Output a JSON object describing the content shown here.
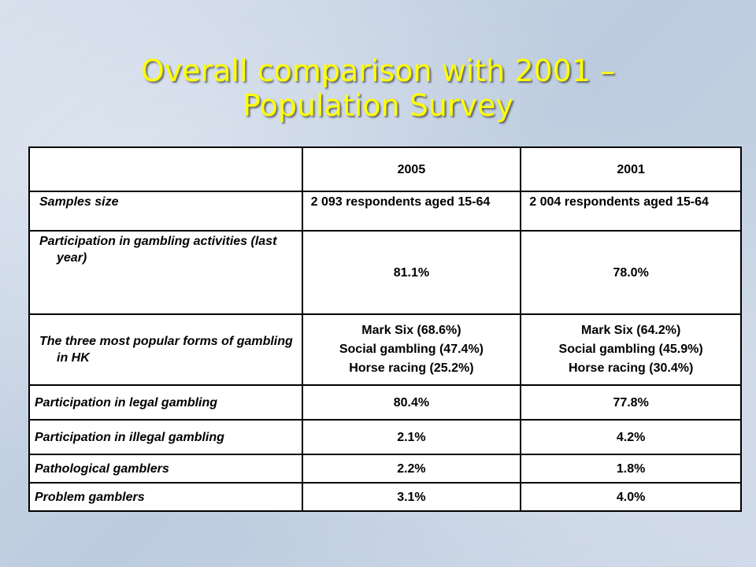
{
  "slide": {
    "title_line1": "Overall comparison with 2001 –",
    "title_line2": "Population Survey"
  },
  "table": {
    "headers": [
      "",
      "2005",
      "2001"
    ],
    "rows": [
      {
        "label": "Samples size",
        "v2005": "2 093 respondents aged 15-64",
        "v2001": "2 004 respondents aged 15-64"
      },
      {
        "label": "Participation in gambling activities (last year)",
        "v2005": "81.1%",
        "v2001": "78.0%"
      },
      {
        "label": "The three most popular forms of gambling in HK",
        "v2005": [
          "Mark Six (68.6%)",
          "Social gambling (47.4%)",
          "Horse racing (25.2%)"
        ],
        "v2001": [
          "Mark Six (64.2%)",
          "Social gambling (45.9%)",
          "Horse racing (30.4%)"
        ]
      },
      {
        "label": "Participation in legal gambling",
        "v2005": "80.4%",
        "v2001": "77.8%"
      },
      {
        "label": "Participation in illegal gambling",
        "v2005": "2.1%",
        "v2001": "4.2%"
      },
      {
        "label": "Pathological gamblers",
        "v2005": "2.2%",
        "v2001": "1.8%"
      },
      {
        "label": "Problem gamblers",
        "v2005": "3.1%",
        "v2001": "4.0%"
      }
    ]
  },
  "colors": {
    "title": "#ffff00",
    "background": "#c7d3e3",
    "table_bg": "#ffffff",
    "border": "#000000"
  }
}
